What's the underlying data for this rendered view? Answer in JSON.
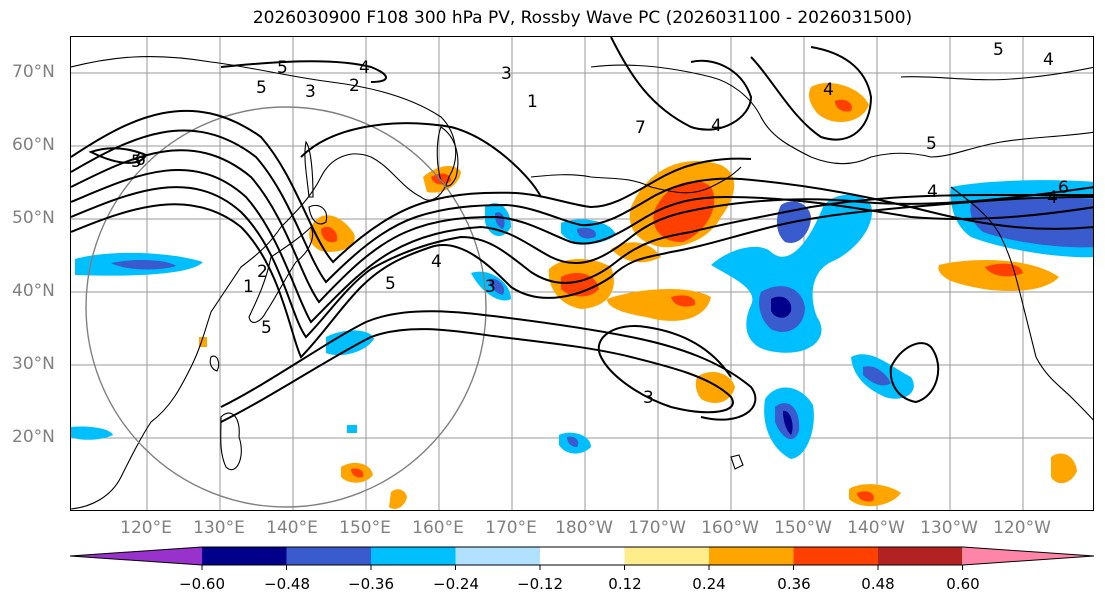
{
  "title": "2026030900 F108 300 hPa PV, Rossby Wave PC (2026031100 - 2026031500)",
  "lat_labels": [
    "70°N",
    "60°N",
    "50°N",
    "40°N",
    "30°N",
    "20°N"
  ],
  "lon_labels": [
    "120°E",
    "130°E",
    "140°E",
    "150°E",
    "160°E",
    "170°E",
    "180°W",
    "170°W",
    "160°W",
    "150°W",
    "140°W",
    "130°W",
    "120°W"
  ],
  "contour_labels": [
    "5",
    "5",
    "3",
    "2",
    "4",
    "1",
    "3",
    "4",
    "5",
    "5",
    "4",
    "4",
    "7",
    "2",
    "1",
    "5",
    "3",
    "3",
    "5",
    "4",
    "6",
    "5",
    "4",
    "6",
    "4"
  ],
  "colorbar": {
    "ticks": [
      "−0.60",
      "−0.48",
      "−0.36",
      "−0.24",
      "−0.12",
      "0.12",
      "0.24",
      "0.36",
      "0.48",
      "0.60"
    ],
    "colors": [
      "#9932cc",
      "#00008b",
      "#3a5bcd",
      "#00bfff",
      "#b0e2ff",
      "#ffffff",
      "#ffec8b",
      "#ffa500",
      "#ff4000",
      "#b22222",
      "#ff85a8"
    ]
  },
  "palette": {
    "strong_neg": "#3a5bcd",
    "neg": "#00bfff",
    "pos": "#ffa500",
    "strong_pos": "#ff4000",
    "darkest_neg": "#00008b"
  }
}
